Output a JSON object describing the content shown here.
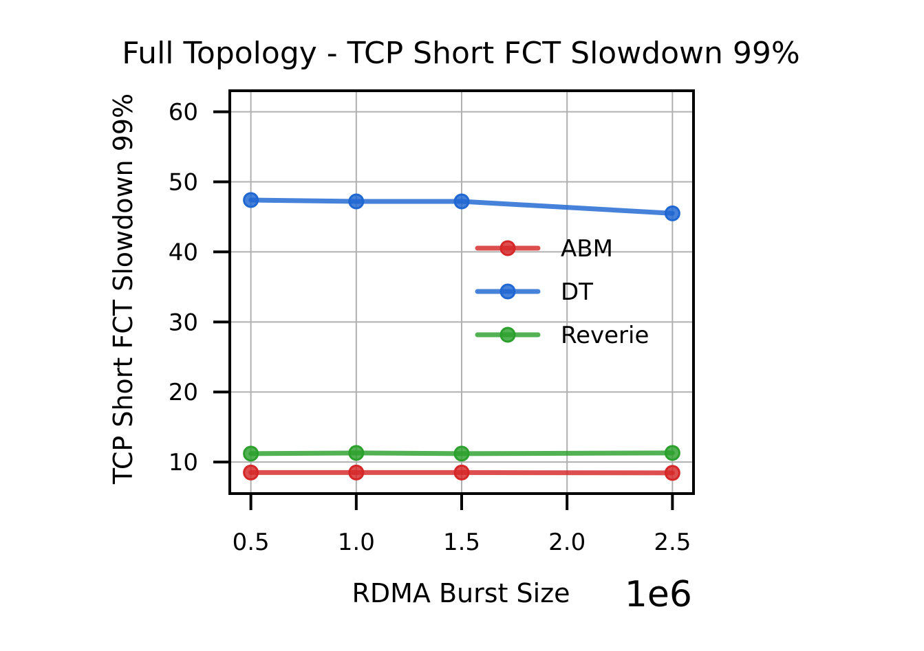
{
  "chart_data": {
    "type": "line",
    "title": "Full Topology - TCP Short FCT Slowdown 99%",
    "xlabel": "RDMA Burst Size",
    "ylabel": "TCP Short FCT Slowdown 99%",
    "x_offset_label": "1e6",
    "xlim": [
      0.4,
      2.6
    ],
    "ylim": [
      5.5,
      63
    ],
    "xticks": [
      0.5,
      1.0,
      1.5,
      2.0,
      2.5
    ],
    "xtick_labels": [
      "0.5",
      "1.0",
      "1.5",
      "2.0",
      "2.5"
    ],
    "yticks": [
      10,
      20,
      30,
      40,
      50,
      60
    ],
    "ytick_labels": [
      "10",
      "20",
      "30",
      "40",
      "50",
      "60"
    ],
    "grid": true,
    "legend_position": "right",
    "series": [
      {
        "name": "ABM",
        "color": "#d62728",
        "x": [
          0.5,
          1.0,
          1.5,
          2.5
        ],
        "y": [
          8.5,
          8.5,
          8.5,
          8.45
        ]
      },
      {
        "name": "DT",
        "color": "#1f67d2",
        "x": [
          0.5,
          1.0,
          1.5,
          2.5
        ],
        "y": [
          47.4,
          47.2,
          47.2,
          45.5
        ]
      },
      {
        "name": "Reverie",
        "color": "#2ca02c",
        "x": [
          0.5,
          1.0,
          1.5,
          2.5
        ],
        "y": [
          11.2,
          11.3,
          11.2,
          11.3
        ]
      }
    ]
  }
}
